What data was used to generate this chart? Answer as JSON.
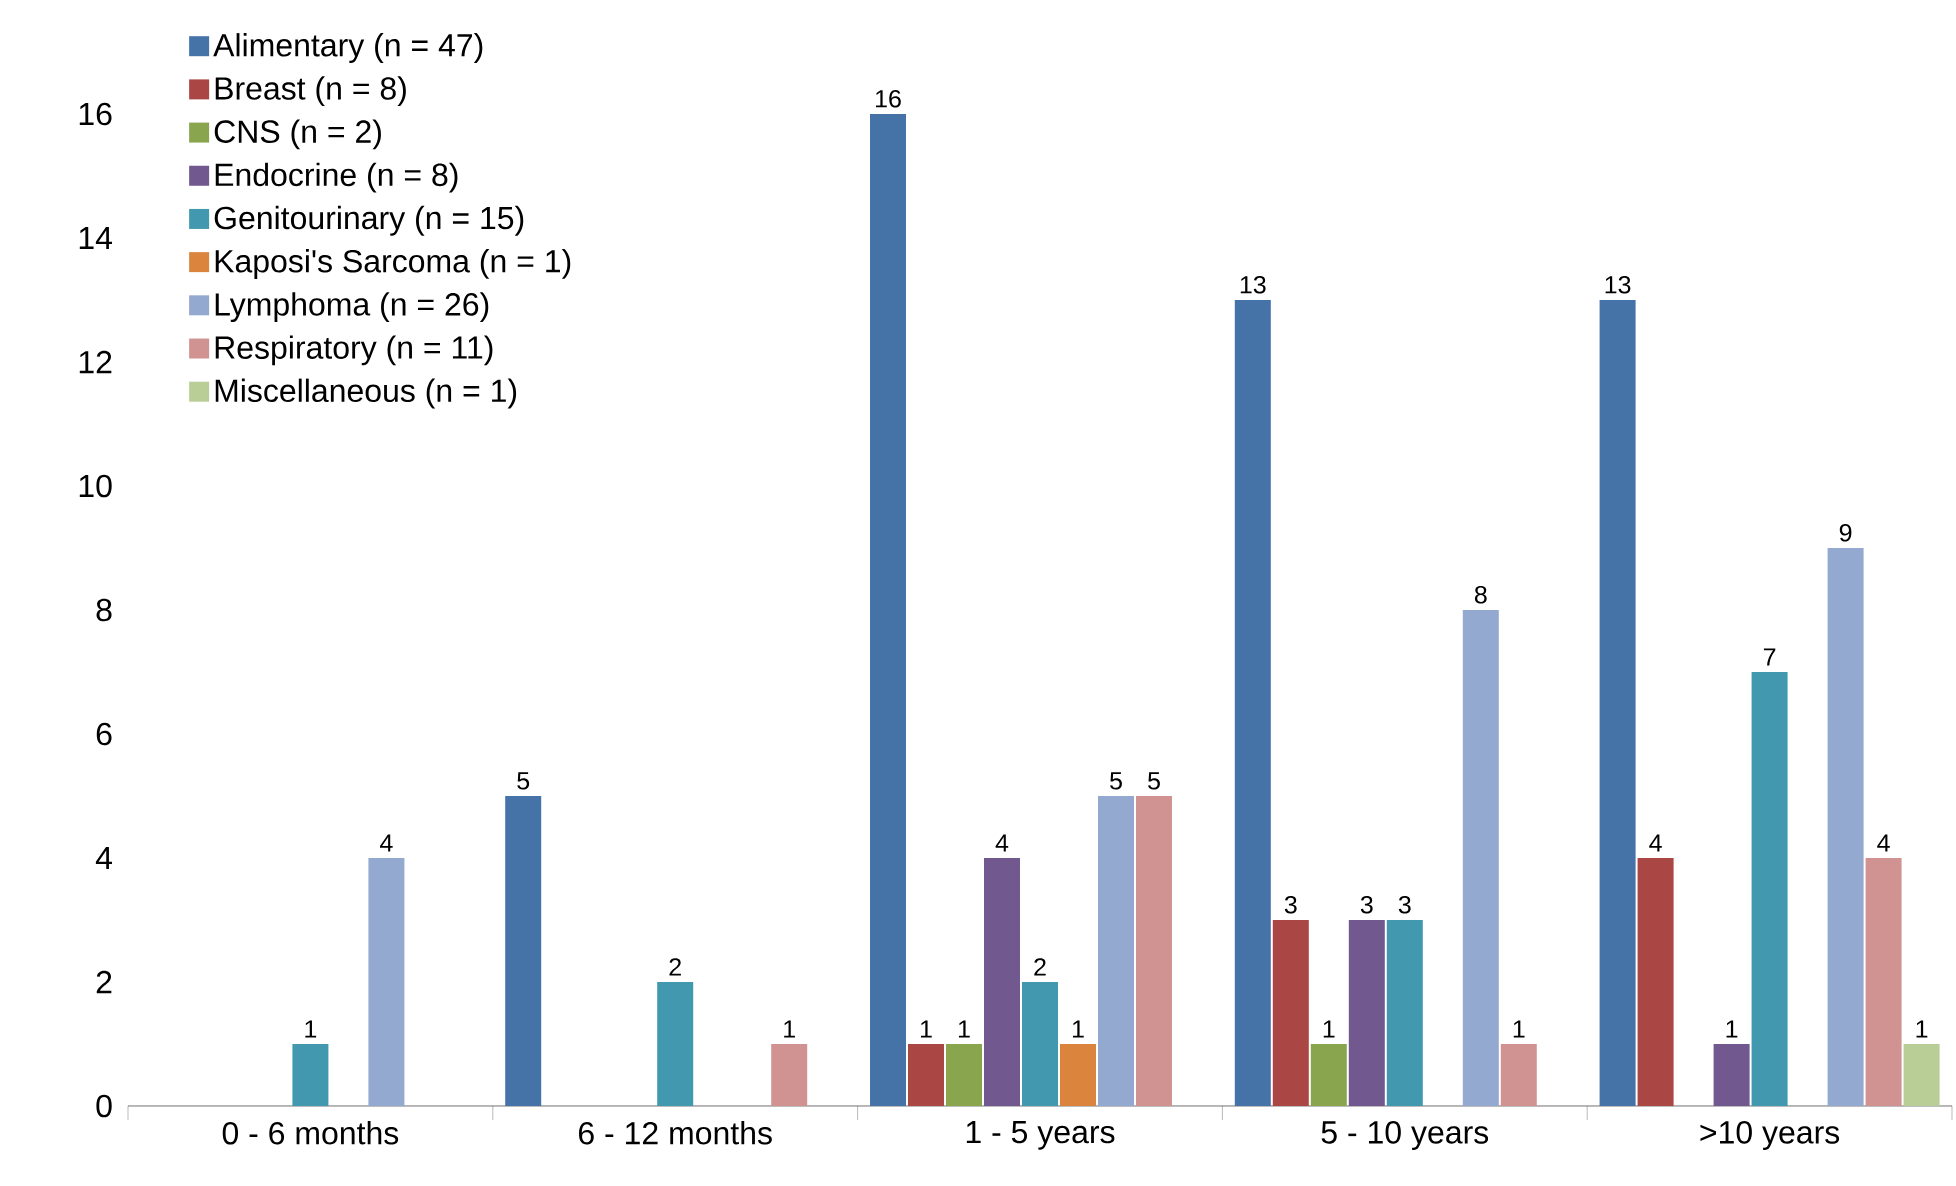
{
  "chart_data": {
    "type": "bar",
    "categories": [
      "0 - 6 months",
      "6 - 12 months",
      "1 - 5 years",
      "5 - 10 years",
      ">10 years"
    ],
    "series": [
      {
        "name": "Alimentary (n = 47)",
        "color": "#4572a7",
        "values": [
          null,
          5,
          16,
          13,
          13
        ]
      },
      {
        "name": "Breast (n = 8)",
        "color": "#aa4643",
        "values": [
          null,
          null,
          1,
          3,
          4
        ]
      },
      {
        "name": "CNS (n = 2)",
        "color": "#89a54e",
        "values": [
          null,
          null,
          1,
          1,
          null
        ]
      },
      {
        "name": "Endocrine (n = 8)",
        "color": "#71588f",
        "values": [
          null,
          null,
          4,
          3,
          1
        ]
      },
      {
        "name": "Genitourinary (n = 15)",
        "color": "#4198af",
        "values": [
          1,
          2,
          2,
          3,
          7
        ]
      },
      {
        "name": "Kaposi's Sarcoma (n = 1)",
        "color": "#db843d",
        "values": [
          null,
          null,
          1,
          null,
          null
        ]
      },
      {
        "name": "Lymphoma (n = 26)",
        "color": "#93a9cf",
        "values": [
          4,
          null,
          5,
          8,
          9
        ]
      },
      {
        "name": "Respiratory (n = 11)",
        "color": "#d19392",
        "values": [
          null,
          1,
          5,
          1,
          4
        ]
      },
      {
        "name": "Miscellaneous (n = 1)",
        "color": "#b9cd96",
        "values": [
          null,
          null,
          null,
          null,
          1
        ]
      }
    ],
    "ylim": [
      0,
      16
    ],
    "yticks": [
      0,
      2,
      4,
      6,
      8,
      10,
      12,
      14,
      16
    ],
    "data_labels": true,
    "legend": "top left",
    "grid": false
  }
}
